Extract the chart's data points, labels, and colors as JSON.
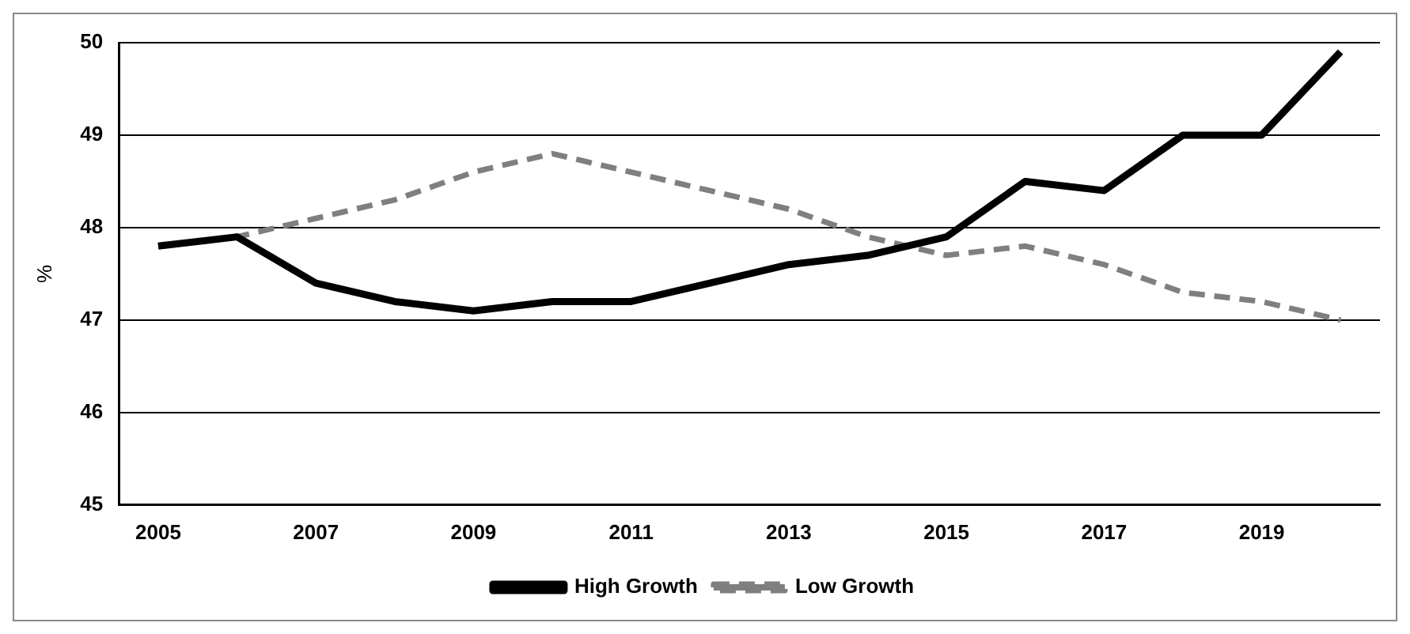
{
  "chart_data": {
    "type": "line",
    "ylabel": "%",
    "categories": [
      "2005",
      null,
      "2007",
      null,
      "2009",
      null,
      "2011",
      null,
      "2013",
      null,
      "2015",
      null,
      "2017",
      null,
      "2019",
      null
    ],
    "series": [
      {
        "name": "High Growth",
        "color": "#000000",
        "line_style": "solid",
        "values": [
          47.8,
          47.9,
          47.4,
          47.2,
          47.1,
          47.2,
          47.2,
          47.4,
          47.6,
          47.7,
          47.9,
          48.5,
          48.4,
          49.0,
          49.0,
          49.9
        ]
      },
      {
        "name": "Low Growth",
        "color": "#7f7f7f",
        "line_style": "dashed",
        "values": [
          47.8,
          47.9,
          48.1,
          48.3,
          48.6,
          48.8,
          48.6,
          48.4,
          48.2,
          47.9,
          47.7,
          47.8,
          47.6,
          47.3,
          47.2,
          47.0
        ]
      }
    ],
    "ylim": [
      45,
      50
    ],
    "yticks": [
      45,
      46,
      47,
      48,
      49,
      50
    ],
    "grid": "y",
    "legend": "bottom",
    "marker": "none"
  }
}
